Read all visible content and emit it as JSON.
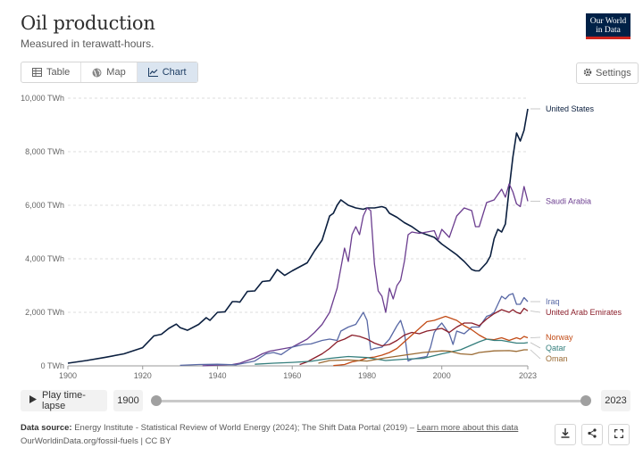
{
  "header": {
    "title": "Oil production",
    "subtitle": "Measured in terawatt-hours.",
    "logo_line1": "Our World",
    "logo_line2": "in Data"
  },
  "tabs": [
    {
      "label": "Table",
      "icon": "table-icon"
    },
    {
      "label": "Map",
      "icon": "globe-icon"
    },
    {
      "label": "Chart",
      "icon": "line-chart-icon",
      "active": true
    }
  ],
  "settings_label": "Settings",
  "timeline": {
    "play_label": "Play time-lapse",
    "start_year": "1900",
    "end_year": "2023"
  },
  "footer": {
    "source_label": "Data source:",
    "source_text": "Energy Institute - Statistical Review of World Energy (2024); The Shift Data Portal (2019) – ",
    "learn_more": "Learn more about this data",
    "url_line": "OurWorldinData.org/fossil-fuels | CC BY"
  },
  "colors": {
    "United States": "#0b1f3f",
    "Saudi Arabia": "#6b3d8f",
    "Iraq": "#5868a5",
    "United Arab Emirates": "#8b1e2a",
    "Norway": "#c24b16",
    "Qatar": "#347e7c",
    "Oman": "#9a6a33"
  },
  "chart_data": {
    "type": "line",
    "title": "Oil production",
    "ylabel": "",
    "unit": "TWh",
    "xlim": [
      1900,
      2023
    ],
    "ylim": [
      0,
      10000
    ],
    "xticks": [
      "1900",
      "1920",
      "1940",
      "1960",
      "1980",
      "2000",
      "2023"
    ],
    "yticks": [
      "0 TWh",
      "2,000 TWh",
      "4,000 TWh",
      "6,000 TWh",
      "8,000 TWh",
      "10,000 TWh"
    ],
    "grid": true,
    "legend": "right-end labels",
    "series": [
      {
        "name": "United States",
        "x": [
          1900,
          1905,
          1910,
          1915,
          1920,
          1923,
          1925,
          1927,
          1929,
          1930,
          1932,
          1935,
          1937,
          1938,
          1940,
          1942,
          1944,
          1945,
          1946,
          1948,
          1950,
          1952,
          1954,
          1956,
          1958,
          1960,
          1962,
          1964,
          1966,
          1968,
          1970,
          1971,
          1972,
          1973,
          1975,
          1977,
          1979,
          1980,
          1982,
          1984,
          1985,
          1986,
          1988,
          1990,
          1992,
          1994,
          1996,
          1998,
          2000,
          2002,
          2004,
          2006,
          2008,
          2009,
          2010,
          2012,
          2013,
          2014,
          2015,
          2016,
          2017,
          2018,
          2019,
          2020,
          2021,
          2022,
          2023
        ],
        "y": [
          100,
          200,
          320,
          450,
          680,
          1120,
          1180,
          1400,
          1560,
          1430,
          1330,
          1550,
          1800,
          1700,
          2000,
          2020,
          2400,
          2400,
          2380,
          2780,
          2800,
          3150,
          3180,
          3600,
          3380,
          3550,
          3700,
          3850,
          4300,
          4700,
          5600,
          5700,
          6000,
          6200,
          6000,
          5900,
          5850,
          5900,
          5900,
          5950,
          5900,
          5700,
          5550,
          5350,
          5200,
          5000,
          4900,
          4800,
          4550,
          4350,
          4150,
          3900,
          3600,
          3550,
          3550,
          3850,
          4100,
          4750,
          5100,
          5000,
          5300,
          6600,
          7800,
          8700,
          8400,
          8800,
          9600
        ]
      },
      {
        "name": "Saudi Arabia",
        "x": [
          1936,
          1940,
          1944,
          1946,
          1948,
          1950,
          1952,
          1954,
          1956,
          1958,
          1960,
          1962,
          1964,
          1966,
          1968,
          1970,
          1972,
          1974,
          1975,
          1976,
          1977,
          1978,
          1979,
          1980,
          1981,
          1982,
          1983,
          1984,
          1985,
          1986,
          1987,
          1988,
          1989,
          1990,
          1991,
          1992,
          1994,
          1996,
          1998,
          1999,
          2000,
          2002,
          2004,
          2006,
          2008,
          2009,
          2010,
          2012,
          2014,
          2016,
          2017,
          2018,
          2019,
          2020,
          2021,
          2022,
          2023
        ],
        "y": [
          5,
          30,
          50,
          100,
          200,
          300,
          450,
          550,
          600,
          650,
          700,
          850,
          1000,
          1250,
          1550,
          2000,
          2900,
          4400,
          3900,
          4900,
          5200,
          4900,
          5600,
          5900,
          5800,
          3800,
          2800,
          2600,
          2000,
          2900,
          2500,
          3000,
          3200,
          3900,
          4900,
          5000,
          4950,
          5000,
          5050,
          4700,
          5100,
          4800,
          5600,
          5900,
          5800,
          5200,
          5200,
          6100,
          6200,
          6600,
          6300,
          6800,
          6500,
          6050,
          5950,
          6700,
          6150
        ]
      },
      {
        "name": "Iraq",
        "x": [
          1930,
          1935,
          1940,
          1945,
          1950,
          1953,
          1955,
          1957,
          1960,
          1963,
          1965,
          1968,
          1970,
          1972,
          1973,
          1975,
          1977,
          1979,
          1980,
          1981,
          1982,
          1984,
          1986,
          1988,
          1989,
          1990,
          1991,
          1992,
          1994,
          1996,
          1997,
          1998,
          1999,
          2000,
          2002,
          2003,
          2004,
          2006,
          2008,
          2010,
          2012,
          2013,
          2014,
          2016,
          2017,
          2018,
          2019,
          2020,
          2021,
          2022,
          2023
        ],
        "y": [
          20,
          50,
          60,
          40,
          180,
          450,
          500,
          420,
          700,
          800,
          820,
          950,
          1000,
          950,
          1300,
          1450,
          1550,
          2000,
          1700,
          600,
          650,
          700,
          1000,
          1500,
          1700,
          1250,
          180,
          250,
          300,
          350,
          700,
          1250,
          1450,
          1600,
          1200,
          800,
          1300,
          1200,
          1450,
          1450,
          1850,
          1900,
          2000,
          2600,
          2500,
          2650,
          2700,
          2300,
          2300,
          2550,
          2400
        ]
      },
      {
        "name": "United Arab Emirates",
        "x": [
          1962,
          1964,
          1966,
          1968,
          1970,
          1972,
          1974,
          1976,
          1978,
          1980,
          1982,
          1984,
          1986,
          1988,
          1990,
          1992,
          1994,
          1996,
          1998,
          2000,
          2002,
          2004,
          2006,
          2008,
          2010,
          2012,
          2014,
          2016,
          2018,
          2019,
          2020,
          2021,
          2022,
          2023
        ],
        "y": [
          50,
          150,
          300,
          450,
          650,
          900,
          1000,
          1150,
          1100,
          1000,
          850,
          750,
          800,
          950,
          1150,
          1250,
          1200,
          1300,
          1350,
          1400,
          1250,
          1450,
          1600,
          1600,
          1500,
          1750,
          1950,
          2100,
          2000,
          2100,
          2000,
          1950,
          2150,
          2050
        ]
      },
      {
        "name": "Norway",
        "x": [
          1971,
          1974,
          1976,
          1978,
          1980,
          1982,
          1984,
          1986,
          1988,
          1990,
          1992,
          1994,
          1996,
          1998,
          2000,
          2001,
          2002,
          2004,
          2006,
          2008,
          2010,
          2012,
          2014,
          2016,
          2018,
          2020,
          2021,
          2022,
          2023
        ],
        "y": [
          10,
          50,
          150,
          200,
          300,
          330,
          400,
          500,
          650,
          900,
          1150,
          1400,
          1650,
          1700,
          1800,
          1850,
          1800,
          1700,
          1500,
          1350,
          1150,
          1000,
          980,
          1050,
          950,
          1050,
          1000,
          1100,
          1050
        ]
      },
      {
        "name": "Qatar",
        "x": [
          1950,
          1955,
          1960,
          1965,
          1970,
          1975,
          1980,
          1985,
          1990,
          1995,
          2000,
          2005,
          2010,
          2012,
          2014,
          2016,
          2018,
          2020,
          2022,
          2023
        ],
        "y": [
          60,
          100,
          130,
          170,
          280,
          350,
          310,
          200,
          250,
          280,
          450,
          600,
          900,
          1000,
          950,
          950,
          900,
          850,
          850,
          870
        ]
      },
      {
        "name": "Oman",
        "x": [
          1967,
          1970,
          1975,
          1980,
          1985,
          1990,
          1995,
          2000,
          2002,
          2005,
          2008,
          2010,
          2014,
          2018,
          2020,
          2022,
          2023
        ],
        "y": [
          100,
          200,
          220,
          180,
          300,
          400,
          500,
          560,
          550,
          450,
          420,
          500,
          560,
          570,
          540,
          600,
          600
        ]
      }
    ]
  }
}
